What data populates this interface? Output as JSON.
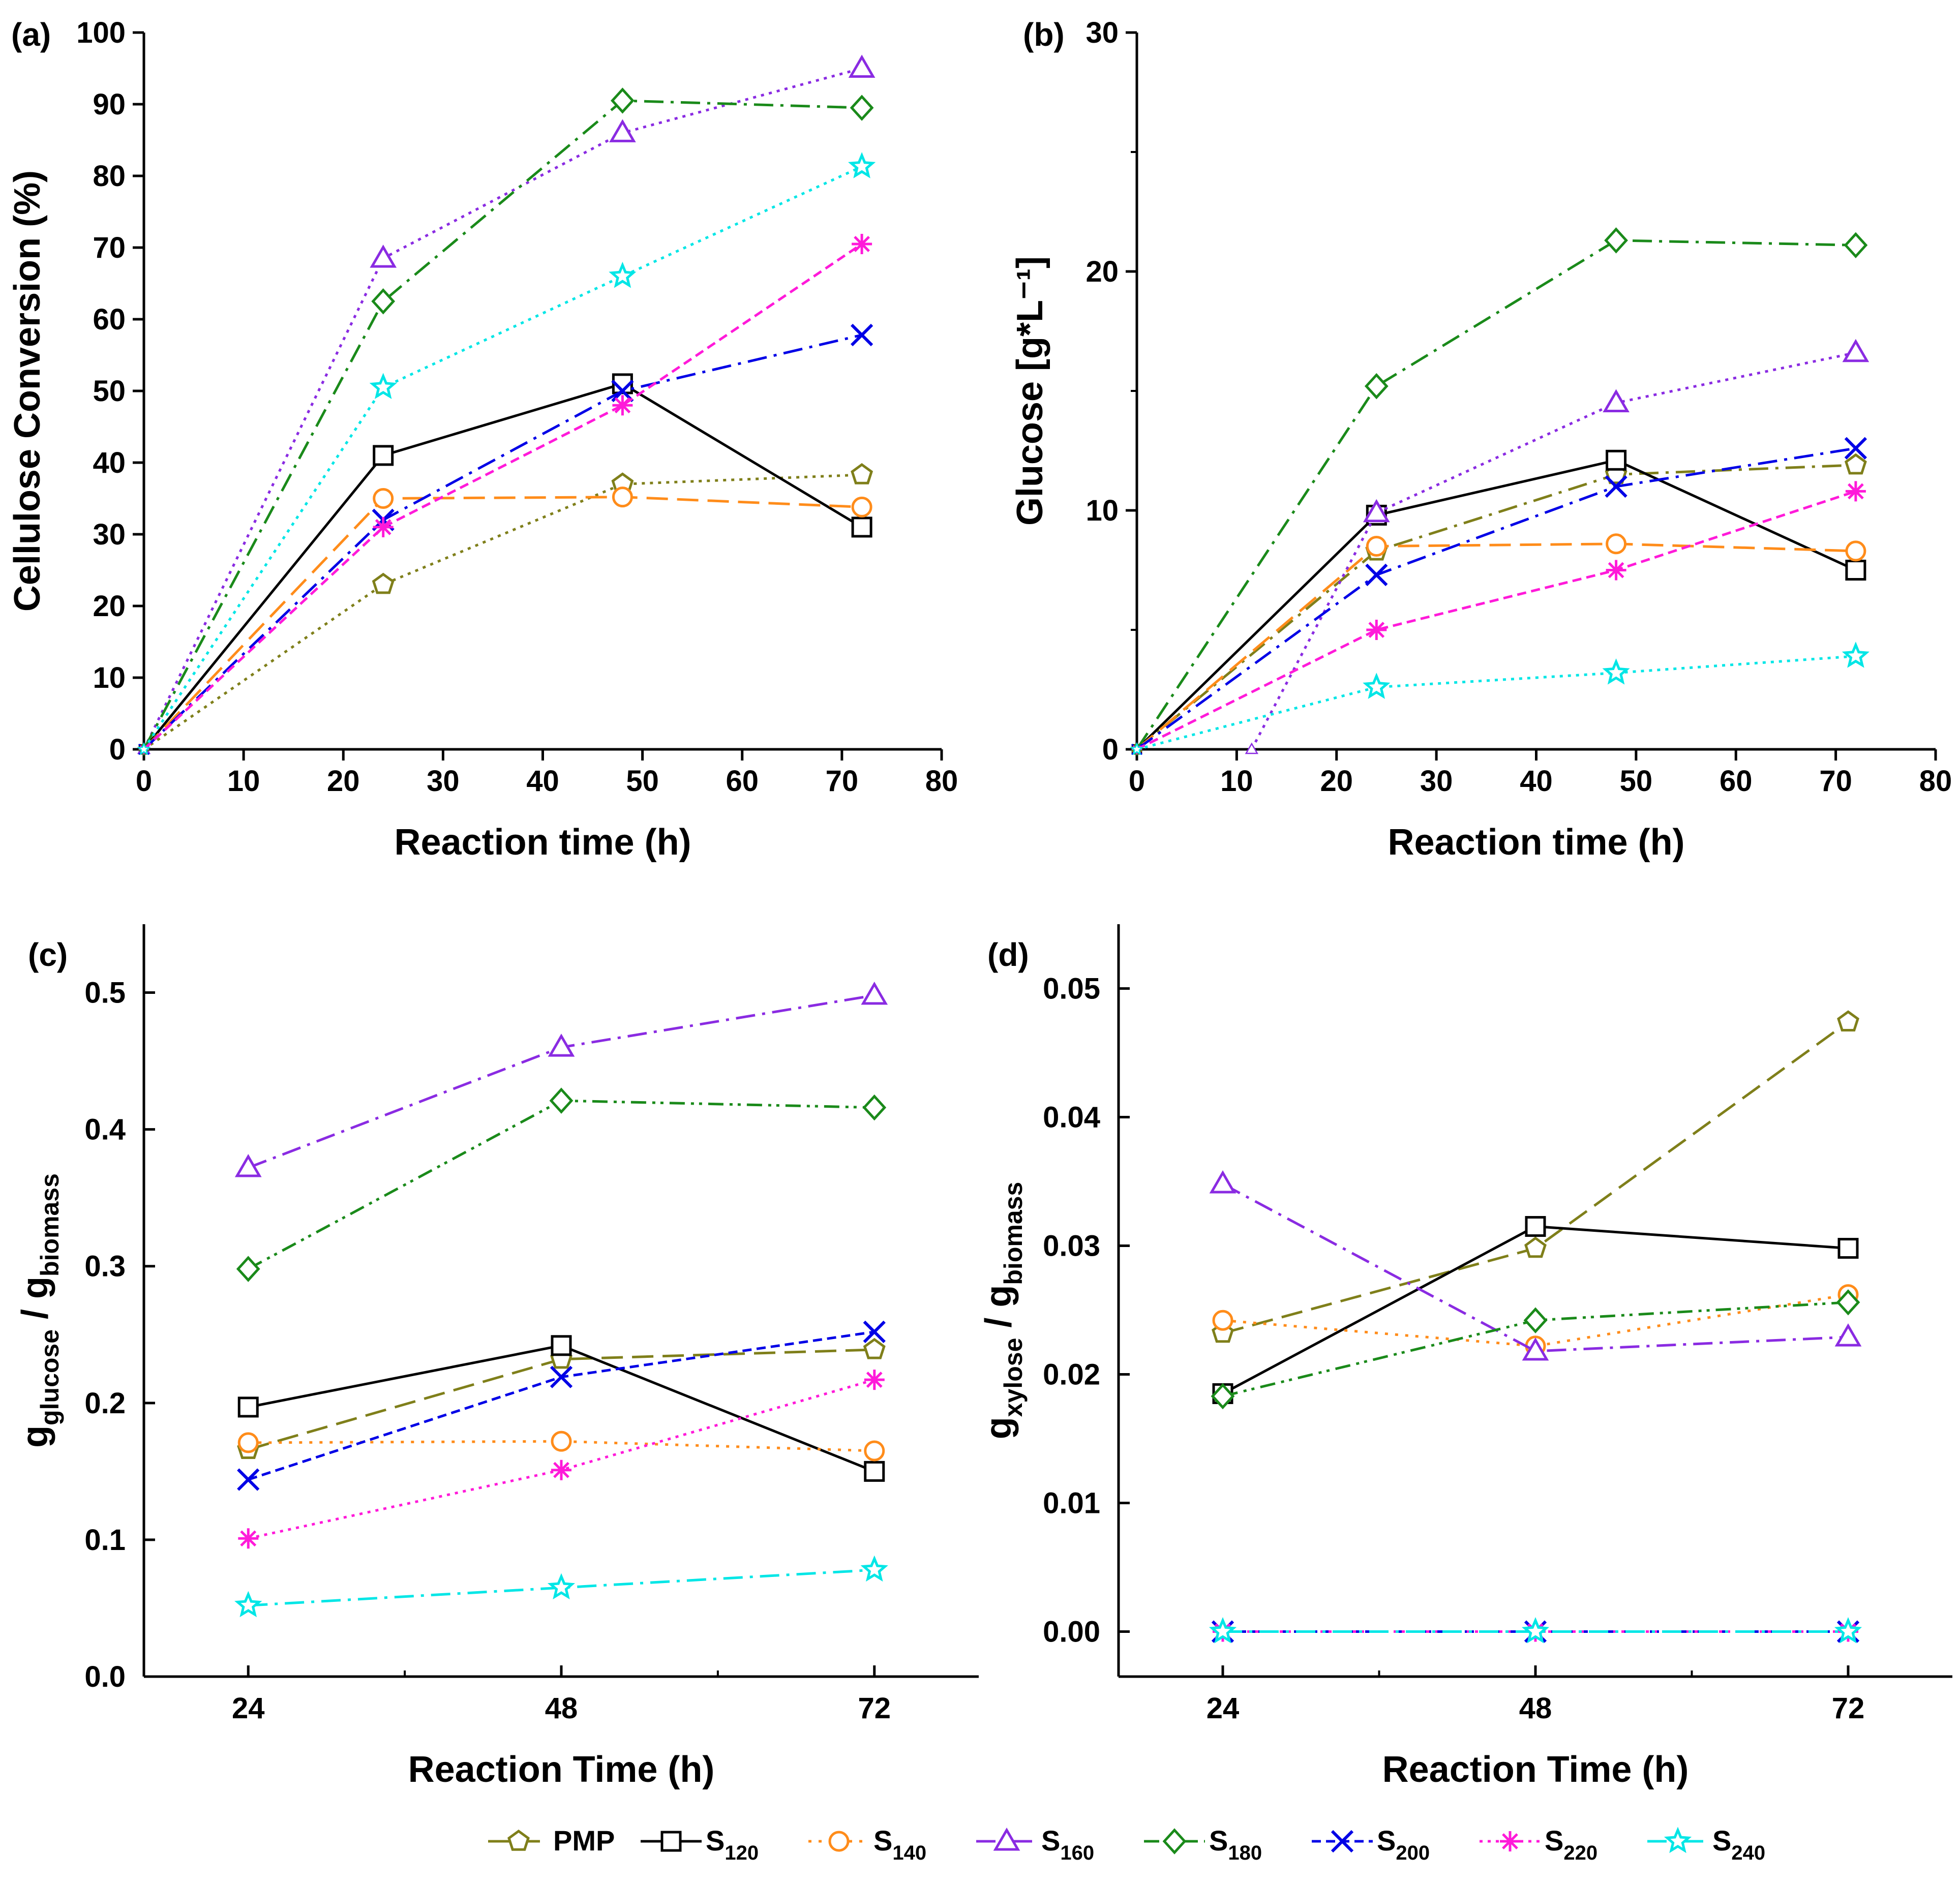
{
  "colors": {
    "PMP": "#7f7f1a",
    "S120": "#000000",
    "S140": "#ff8c1a",
    "S160": "#8a2be2",
    "S180": "#1a8a1a",
    "S200": "#0000e6",
    "S220": "#ff1ad9",
    "S240": "#00e6e6"
  },
  "legend": [
    {
      "key": "PMP",
      "label": "PMP",
      "sub": "",
      "marker": "pentagon",
      "dash": "dash"
    },
    {
      "key": "S120",
      "label": "S",
      "sub": "120",
      "marker": "square",
      "dash": "solid"
    },
    {
      "key": "S140",
      "label": "S",
      "sub": "140",
      "marker": "circle",
      "dash": "dot"
    },
    {
      "key": "S160",
      "label": "S",
      "sub": "160",
      "marker": "triangle",
      "dash": "dashdot"
    },
    {
      "key": "S180",
      "label": "S",
      "sub": "180",
      "marker": "diamond",
      "dash": "dashdotdot"
    },
    {
      "key": "S200",
      "label": "S",
      "sub": "200",
      "marker": "x",
      "dash": "shortdash"
    },
    {
      "key": "S220",
      "label": "S",
      "sub": "220",
      "marker": "star",
      "dash": "shortdot"
    },
    {
      "key": "S240",
      "label": "S",
      "sub": "240",
      "marker": "star5",
      "dash": "dashdot"
    }
  ],
  "chart_data": [
    {
      "panel": "(a)",
      "type": "line",
      "xlabel": "Reaction time (h)",
      "ylabel": "Cellulose Conversion (%)",
      "ylabel_sub": "",
      "ylabel_parts": [],
      "xlim": [
        0,
        80
      ],
      "ylim": [
        0,
        100
      ],
      "xticks": [
        0,
        10,
        20,
        30,
        40,
        50,
        60,
        70,
        80
      ],
      "yticks": [
        0,
        10,
        20,
        30,
        40,
        50,
        60,
        70,
        80,
        90,
        100
      ],
      "ytick_labels": [
        "0",
        "10",
        "20",
        "30",
        "40",
        "50",
        "60",
        "70",
        "80",
        "90",
        "100"
      ],
      "series": [
        {
          "name": "PMP",
          "x": [
            0,
            24,
            48,
            72
          ],
          "values": [
            0,
            23,
            37,
            38.3
          ],
          "dash": "shortdot"
        },
        {
          "name": "S120",
          "x": [
            0,
            24,
            48,
            72
          ],
          "values": [
            0,
            41,
            51,
            31
          ],
          "dash": "solid"
        },
        {
          "name": "S140",
          "x": [
            0,
            24,
            48,
            72
          ],
          "values": [
            0,
            35,
            35.2,
            33.8
          ],
          "dash": "dash"
        },
        {
          "name": "S160",
          "x": [
            0,
            24,
            48,
            72
          ],
          "values": [
            0,
            68.5,
            86,
            95
          ],
          "dash": "shortdot"
        },
        {
          "name": "S180",
          "x": [
            0,
            24,
            48,
            72
          ],
          "values": [
            0,
            62.5,
            90.5,
            89.5
          ],
          "dash": "dashdot"
        },
        {
          "name": "S200",
          "x": [
            0,
            24,
            48,
            72
          ],
          "values": [
            0,
            32,
            50,
            57.8
          ],
          "dash": "dashdot"
        },
        {
          "name": "S220",
          "x": [
            0,
            24,
            48,
            72
          ],
          "values": [
            0,
            31,
            48,
            70.5
          ],
          "dash": "shortdash"
        },
        {
          "name": "S240",
          "x": [
            0,
            24,
            48,
            72
          ],
          "values": [
            0,
            50.5,
            66,
            81.3
          ],
          "dash": "shortdot"
        }
      ]
    },
    {
      "panel": "(b)",
      "type": "line",
      "xlabel": "Reaction time (h)",
      "ylabel": "Glucose [g*L⁻¹]",
      "ylabel_sub": "",
      "ylabel_parts": [],
      "xlim": [
        0,
        80
      ],
      "ylim": [
        0,
        30
      ],
      "xticks": [
        0,
        10,
        20,
        30,
        40,
        50,
        60,
        70,
        80
      ],
      "yticks": [
        0,
        10,
        20,
        30
      ],
      "ytick_labels": [
        "0",
        "10",
        "20",
        "30"
      ],
      "yminor": [
        5,
        15,
        25
      ],
      "series": [
        {
          "name": "PMP",
          "x": [
            0,
            24,
            48,
            72
          ],
          "values": [
            0,
            8.3,
            11.5,
            11.9
          ],
          "dash": "dashdot"
        },
        {
          "name": "S120",
          "x": [
            0,
            24,
            48,
            72
          ],
          "values": [
            0,
            9.8,
            12.1,
            7.5
          ],
          "dash": "solid"
        },
        {
          "name": "S140",
          "x": [
            0,
            24,
            48,
            72
          ],
          "values": [
            0,
            8.5,
            8.6,
            8.3
          ],
          "dash": "dash"
        },
        {
          "name": "S160",
          "x": [
            11.5,
            24,
            48,
            72
          ],
          "values": [
            0,
            9.9,
            14.5,
            16.6
          ],
          "dash": "shortdot"
        },
        {
          "name": "S180",
          "x": [
            0,
            24,
            48,
            72
          ],
          "values": [
            0,
            15.2,
            21.3,
            21.1
          ],
          "dash": "dashdot"
        },
        {
          "name": "S200",
          "x": [
            0,
            24,
            48,
            72
          ],
          "values": [
            0,
            7.3,
            11,
            12.6
          ],
          "dash": "dashdot"
        },
        {
          "name": "S220",
          "x": [
            0,
            24,
            48,
            72
          ],
          "values": [
            0,
            5,
            7.5,
            10.8
          ],
          "dash": "shortdash"
        },
        {
          "name": "S240",
          "x": [
            0,
            24,
            48,
            72
          ],
          "values": [
            0,
            2.6,
            3.2,
            3.9
          ],
          "dash": "shortdot"
        }
      ]
    },
    {
      "panel": "(c)",
      "type": "line",
      "xlabel": "Reaction Time (h)",
      "ylabel": "",
      "ylabel_parts": [
        {
          "text": "g",
          "sub": false
        },
        {
          "text": "glucose",
          "sub": true
        },
        {
          "text": " / g",
          "sub": false
        },
        {
          "text": "biomass",
          "sub": true
        }
      ],
      "xlim": [
        16,
        80
      ],
      "ylim": [
        0,
        0.55
      ],
      "xticks": [
        24,
        48,
        72
      ],
      "xminor": [
        36,
        60
      ],
      "yticks": [
        0,
        0.1,
        0.2,
        0.3,
        0.4,
        0.5
      ],
      "ytick_labels": [
        "0.0",
        "0.1",
        "0.2",
        "0.3",
        "0.4",
        "0.5"
      ],
      "series": [
        {
          "name": "PMP",
          "x": [
            24,
            48,
            72
          ],
          "values": [
            0.166,
            0.232,
            0.239
          ],
          "dash": "dash"
        },
        {
          "name": "S120",
          "x": [
            24,
            48,
            72
          ],
          "values": [
            0.197,
            0.242,
            0.15
          ],
          "dash": "solid"
        },
        {
          "name": "S140",
          "x": [
            24,
            48,
            72
          ],
          "values": [
            0.171,
            0.172,
            0.165
          ],
          "dash": "dot"
        },
        {
          "name": "S160",
          "x": [
            24,
            48,
            72
          ],
          "values": [
            0.372,
            0.46,
            0.498
          ],
          "dash": "dashdot"
        },
        {
          "name": "S180",
          "x": [
            24,
            48,
            72
          ],
          "values": [
            0.298,
            0.421,
            0.416
          ],
          "dash": "dashdotdot"
        },
        {
          "name": "S200",
          "x": [
            24,
            48,
            72
          ],
          "values": [
            0.144,
            0.219,
            0.252
          ],
          "dash": "shortdash"
        },
        {
          "name": "S220",
          "x": [
            24,
            48,
            72
          ],
          "values": [
            0.101,
            0.151,
            0.217
          ],
          "dash": "shortdot"
        },
        {
          "name": "S240",
          "x": [
            24,
            48,
            72
          ],
          "values": [
            0.052,
            0.065,
            0.078
          ],
          "dash": "dashdot"
        }
      ]
    },
    {
      "panel": "(d)",
      "type": "line",
      "xlabel": "Reaction Time (h)",
      "ylabel": "",
      "ylabel_parts": [
        {
          "text": "g",
          "sub": false
        },
        {
          "text": "xylose",
          "sub": true
        },
        {
          "text": " / g",
          "sub": false
        },
        {
          "text": "biomass",
          "sub": true
        }
      ],
      "xlim": [
        16,
        80
      ],
      "ylim": [
        -0.0035,
        0.055
      ],
      "xticks": [
        24,
        48,
        72
      ],
      "xminor": [
        36,
        60
      ],
      "yticks": [
        0,
        0.01,
        0.02,
        0.03,
        0.04,
        0.05
      ],
      "ytick_labels": [
        "0.00",
        "0.01",
        "0.02",
        "0.03",
        "0.04",
        "0.05"
      ],
      "series": [
        {
          "name": "PMP",
          "x": [
            24,
            48,
            72
          ],
          "values": [
            0.0232,
            0.0298,
            0.0474
          ],
          "dash": "dash"
        },
        {
          "name": "S120",
          "x": [
            24,
            48,
            72
          ],
          "values": [
            0.0185,
            0.0315,
            0.0298
          ],
          "dash": "solid"
        },
        {
          "name": "S140",
          "x": [
            24,
            48,
            72
          ],
          "values": [
            0.0242,
            0.0222,
            0.0262
          ],
          "dash": "dot"
        },
        {
          "name": "S160",
          "x": [
            24,
            48,
            72
          ],
          "values": [
            0.0348,
            0.0218,
            0.0229
          ],
          "dash": "dashdot"
        },
        {
          "name": "S180",
          "x": [
            24,
            48,
            72
          ],
          "values": [
            0.0183,
            0.0242,
            0.0256
          ],
          "dash": "dashdotdot"
        },
        {
          "name": "S200",
          "x": [
            24,
            48,
            72
          ],
          "values": [
            0,
            0,
            0
          ],
          "dash": "shortdash"
        },
        {
          "name": "S220",
          "x": [
            24,
            48,
            72
          ],
          "values": [
            0,
            0,
            0
          ],
          "dash": "shortdot"
        },
        {
          "name": "S240",
          "x": [
            24,
            48,
            72
          ],
          "values": [
            0,
            0,
            0
          ],
          "dash": "dashdot"
        }
      ]
    }
  ]
}
